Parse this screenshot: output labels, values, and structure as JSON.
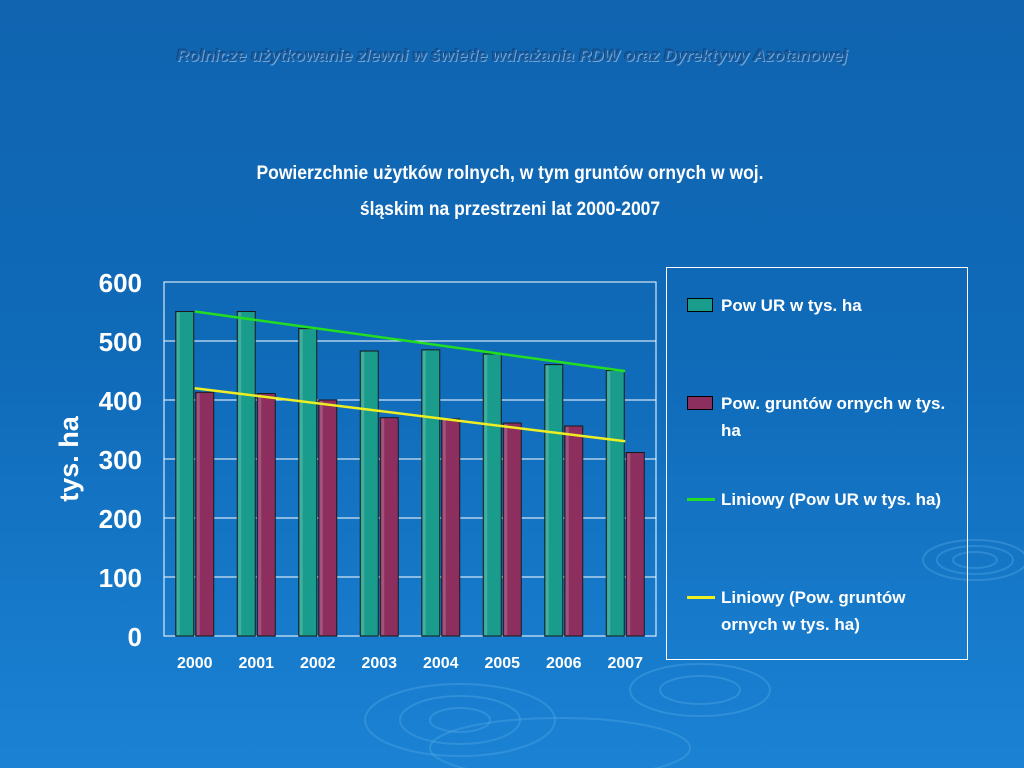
{
  "slide": {
    "header": "Rolnicze użytkowanie zlewni w świetle wdrażania RDW oraz Dyrektywy Azotanowej"
  },
  "chart_data": {
    "type": "bar",
    "title": "Powierzchnie użytków rolnych, w  tym gruntów ornych w woj. śląskim na przestrzeni lat 2000-2007",
    "title_lines": [
      "Powierzchnie użytków rolnych, w  tym gruntów ornych w woj.",
      "śląskim na przestrzeni lat 2000-2007"
    ],
    "ylabel": "tys. ha",
    "xlabel": "",
    "ylim": [
      0,
      600
    ],
    "yticks": [
      "0",
      "100",
      "200",
      "300",
      "400",
      "500",
      "600"
    ],
    "categories": [
      "2000",
      "2001",
      "2002",
      "2003",
      "2004",
      "2005",
      "2006",
      "2007"
    ],
    "grid": true,
    "legend_position": "right",
    "series": [
      {
        "name": "Pow UR w tys. ha",
        "kind": "bar",
        "color": "#1a9c8c",
        "values": [
          550,
          550,
          521,
          483,
          485,
          478,
          460,
          450
        ]
      },
      {
        "name": "Pow. gruntów ornych w tys. ha",
        "kind": "bar",
        "color": "#8c2f5e",
        "values": [
          413,
          411,
          400,
          370,
          368,
          361,
          356,
          311
        ]
      },
      {
        "name": "Liniowy (Pow UR w tys. ha)",
        "kind": "trendline",
        "color": "#22dd22",
        "values": [
          550,
          535,
          521,
          507,
          492,
          478,
          464,
          449
        ]
      },
      {
        "name": "Liniowy (Pow. gruntów ornych w tys. ha)",
        "kind": "trendline",
        "color": "#eeee22",
        "values": [
          420,
          407,
          394,
          381,
          368,
          356,
          343,
          330
        ]
      }
    ]
  }
}
